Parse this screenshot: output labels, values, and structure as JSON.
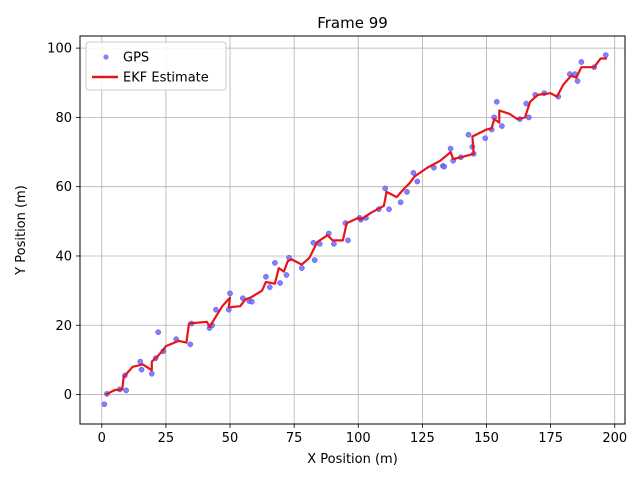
{
  "chart_data": {
    "type": "scatter",
    "title": "Frame 99",
    "xlabel": "X Position (m)",
    "ylabel": "Y Position (m)",
    "xlim": [
      -8.5,
      204
    ],
    "ylim": [
      -8.5,
      103.5
    ],
    "xticks": [
      0,
      25,
      50,
      75,
      100,
      125,
      150,
      175,
      200
    ],
    "yticks": [
      0,
      20,
      40,
      60,
      80,
      100
    ],
    "grid": true,
    "legend_position": "top-left",
    "series": [
      {
        "name": "GPS",
        "kind": "scatter",
        "color": "#6b6bff",
        "points": [
          [
            1,
            -2.8
          ],
          [
            2,
            0.2
          ],
          [
            7,
            1.5
          ],
          [
            9,
            5.5
          ],
          [
            9.5,
            1.2
          ],
          [
            15,
            9.5
          ],
          [
            15.5,
            7.2
          ],
          [
            19.5,
            6
          ],
          [
            21,
            10.5
          ],
          [
            22,
            18
          ],
          [
            24,
            12.5
          ],
          [
            29,
            16
          ],
          [
            34.5,
            14.5
          ],
          [
            35,
            20.5
          ],
          [
            42,
            19.2
          ],
          [
            43,
            20
          ],
          [
            44.5,
            24.5
          ],
          [
            49.5,
            24.5
          ],
          [
            50,
            29.2
          ],
          [
            55,
            27.8
          ],
          [
            57.5,
            27
          ],
          [
            58.5,
            26.8
          ],
          [
            64,
            34
          ],
          [
            65.5,
            31
          ],
          [
            67.5,
            38
          ],
          [
            69.5,
            32.2
          ],
          [
            72,
            34.5
          ],
          [
            73,
            39.5
          ],
          [
            78,
            36.5
          ],
          [
            82.5,
            43.8
          ],
          [
            83,
            38.8
          ],
          [
            85,
            43.5
          ],
          [
            88.5,
            46.5
          ],
          [
            90.5,
            43.5
          ],
          [
            95,
            49.5
          ],
          [
            96,
            44.5
          ],
          [
            100.5,
            51
          ],
          [
            101,
            50.5
          ],
          [
            103,
            51
          ],
          [
            108,
            53.5
          ],
          [
            110.5,
            59.5
          ],
          [
            112,
            53.5
          ],
          [
            116.5,
            55.5
          ],
          [
            119,
            58.5
          ],
          [
            121.5,
            64
          ],
          [
            123,
            61.5
          ],
          [
            129.5,
            65.5
          ],
          [
            133,
            66
          ],
          [
            133.5,
            65.8
          ],
          [
            136,
            71
          ],
          [
            137,
            67.5
          ],
          [
            140,
            68.5
          ],
          [
            143,
            75
          ],
          [
            144.5,
            71.5
          ],
          [
            145,
            69.5
          ],
          [
            149.5,
            74
          ],
          [
            152,
            76.5
          ],
          [
            153,
            80
          ],
          [
            154,
            84.5
          ],
          [
            156,
            77.5
          ],
          [
            163,
            79.5
          ],
          [
            165.5,
            84
          ],
          [
            166.5,
            80
          ],
          [
            169,
            86.5
          ],
          [
            172.5,
            87
          ],
          [
            178,
            86
          ],
          [
            182.5,
            92.5
          ],
          [
            184.5,
            92.5
          ],
          [
            185.5,
            90.5
          ],
          [
            187,
            96
          ],
          [
            192,
            94.5
          ],
          [
            196.5,
            98
          ]
        ]
      },
      {
        "name": "EKF Estimate",
        "kind": "line",
        "color": "#e8141b",
        "points": [
          [
            1.5,
            0
          ],
          [
            5,
            1.3
          ],
          [
            8,
            1.5
          ],
          [
            8.5,
            5
          ],
          [
            12,
            8
          ],
          [
            16,
            8.7
          ],
          [
            19.5,
            7
          ],
          [
            19.5,
            9.5
          ],
          [
            21,
            10.5
          ],
          [
            23.5,
            12.5
          ],
          [
            25,
            14
          ],
          [
            30,
            15.5
          ],
          [
            33,
            15
          ],
          [
            34,
            20.5
          ],
          [
            41,
            21
          ],
          [
            42,
            19.5
          ],
          [
            44.5,
            22.5
          ],
          [
            47,
            25.5
          ],
          [
            50,
            28
          ],
          [
            49.5,
            25.2
          ],
          [
            54,
            25.5
          ],
          [
            56,
            27.5
          ],
          [
            58,
            28
          ],
          [
            62.5,
            30
          ],
          [
            64,
            32.5
          ],
          [
            67.5,
            32
          ],
          [
            69,
            36.5
          ],
          [
            71,
            35.5
          ],
          [
            72.5,
            38.5
          ],
          [
            74,
            39
          ],
          [
            78,
            37.5
          ],
          [
            81,
            39.5
          ],
          [
            84,
            44
          ],
          [
            88,
            46
          ],
          [
            90,
            44.5
          ],
          [
            94,
            44.5
          ],
          [
            95.5,
            49.5
          ],
          [
            100,
            51
          ],
          [
            101,
            50.5
          ],
          [
            105,
            52.5
          ],
          [
            110,
            54.5
          ],
          [
            111,
            58.5
          ],
          [
            115,
            57
          ],
          [
            118,
            59.5
          ],
          [
            120,
            61
          ],
          [
            122,
            63
          ],
          [
            127,
            65.5
          ],
          [
            132,
            67.5
          ],
          [
            136,
            70
          ],
          [
            137,
            68
          ],
          [
            140,
            68.5
          ],
          [
            145,
            69.5
          ],
          [
            144.5,
            74.5
          ],
          [
            150,
            76.5
          ],
          [
            152,
            76.8
          ],
          [
            153,
            79.5
          ],
          [
            155,
            78.5
          ],
          [
            155,
            82
          ],
          [
            159,
            81
          ],
          [
            162,
            79.5
          ],
          [
            165,
            80
          ],
          [
            167,
            84.5
          ],
          [
            170,
            86.5
          ],
          [
            175,
            87
          ],
          [
            177.5,
            86
          ],
          [
            180,
            89.5
          ],
          [
            183,
            92
          ],
          [
            185,
            91.5
          ],
          [
            187,
            94.5
          ],
          [
            192,
            94.5
          ],
          [
            194.5,
            97
          ],
          [
            197,
            97
          ]
        ]
      }
    ]
  }
}
